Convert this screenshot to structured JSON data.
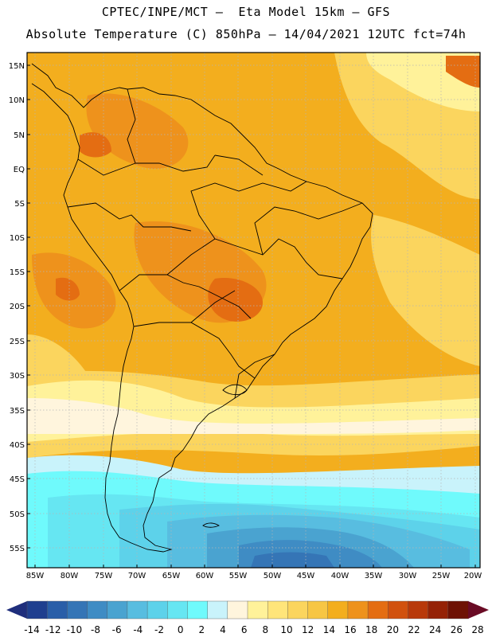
{
  "header": {
    "line1": "CPTEC/INPE/MCT –  Eta Model 15km – GFS",
    "line2": "Absolute Temperature (C) 850hPa – 14/04/2021 12UTC fct=74h"
  },
  "axes": {
    "lat_labels": [
      "15N",
      "10N",
      "5N",
      "EQ",
      "5S",
      "10S",
      "15S",
      "20S",
      "25S",
      "30S",
      "35S",
      "40S",
      "45S",
      "50S",
      "55S"
    ],
    "lon_labels": [
      "85W",
      "80W",
      "75W",
      "70W",
      "65W",
      "60W",
      "55W",
      "50W",
      "45W",
      "40W",
      "35W",
      "30W",
      "25W",
      "20W"
    ]
  },
  "colorbar": {
    "labels": [
      "-14",
      "-12",
      "-10",
      "-8",
      "-6",
      "-4",
      "-2",
      "0",
      "2",
      "4",
      "6",
      "8",
      "10",
      "12",
      "14",
      "16",
      "18",
      "20",
      "22",
      "24",
      "26",
      "28"
    ],
    "colors": [
      "#1f3f8f",
      "#2a5ea8",
      "#3575b6",
      "#3f8cc4",
      "#4aa3d0",
      "#58bde0",
      "#5dd2ea",
      "#66e6f2",
      "#6ffafc",
      "#c9f3fb",
      "#fff5dd",
      "#fff29a",
      "#ffe57a",
      "#fbd55e",
      "#f7c644",
      "#f3ae1e",
      "#ee921c",
      "#e46d12",
      "#d1510e",
      "#b8390a",
      "#952206",
      "#6e1204"
    ],
    "end_low": "#1f2e7c",
    "end_high": "#6a0b25"
  }
}
